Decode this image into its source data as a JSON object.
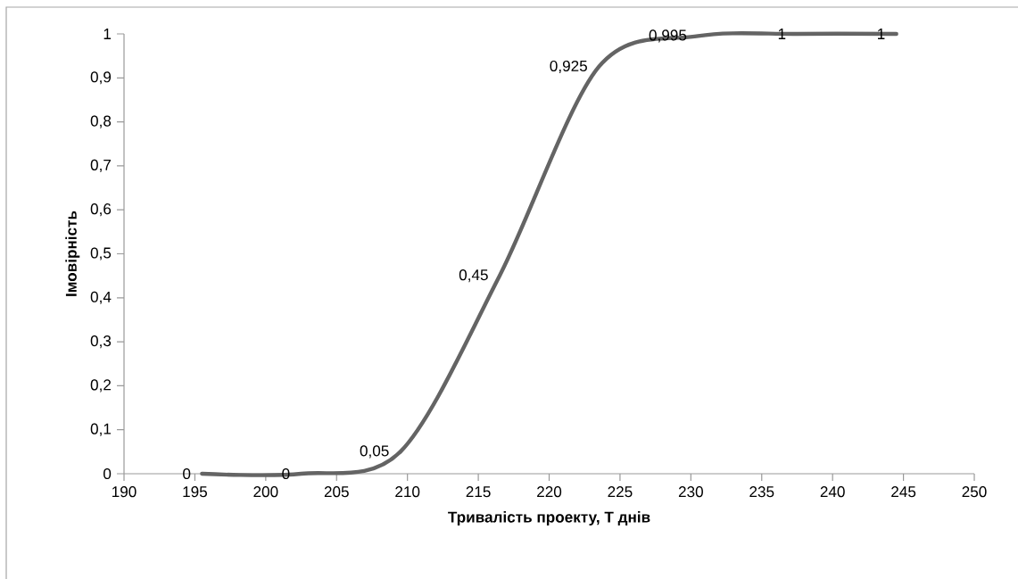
{
  "chart_data": {
    "type": "line",
    "xlabel": "Тривалість проекту, Т днів",
    "ylabel": "Імовірність",
    "x": [
      195.5,
      202.5,
      209.5,
      216.5,
      223.5,
      230.5,
      237.5,
      244.5
    ],
    "values": [
      0,
      0,
      0.05,
      0.45,
      0.925,
      0.995,
      1,
      1
    ],
    "value_labels": [
      "0",
      "0",
      "0,05",
      "0,45",
      "0,925",
      "0,995",
      "1",
      "1"
    ],
    "color": "#646464",
    "marker": "none",
    "line_style": "solid",
    "grid": false,
    "xlim": [
      190,
      250
    ],
    "xticks": [
      190,
      195,
      200,
      205,
      210,
      215,
      220,
      225,
      230,
      235,
      240,
      245,
      250
    ],
    "ylim": [
      0,
      1
    ],
    "yticks": [
      0,
      {
        "value": 0.1,
        "label": "0,1"
      },
      {
        "value": 0.2,
        "label": "0,2"
      },
      {
        "value": 0.3,
        "label": "0,3"
      },
      {
        "value": 0.4,
        "label": "0,4"
      },
      {
        "value": 0.5,
        "label": "0,5"
      },
      {
        "value": 0.6,
        "label": "0,6"
      },
      {
        "value": 0.7,
        "label": "0,7"
      },
      {
        "value": 0.8,
        "label": "0,8"
      },
      {
        "value": 0.9,
        "label": "0,9"
      },
      1
    ]
  }
}
